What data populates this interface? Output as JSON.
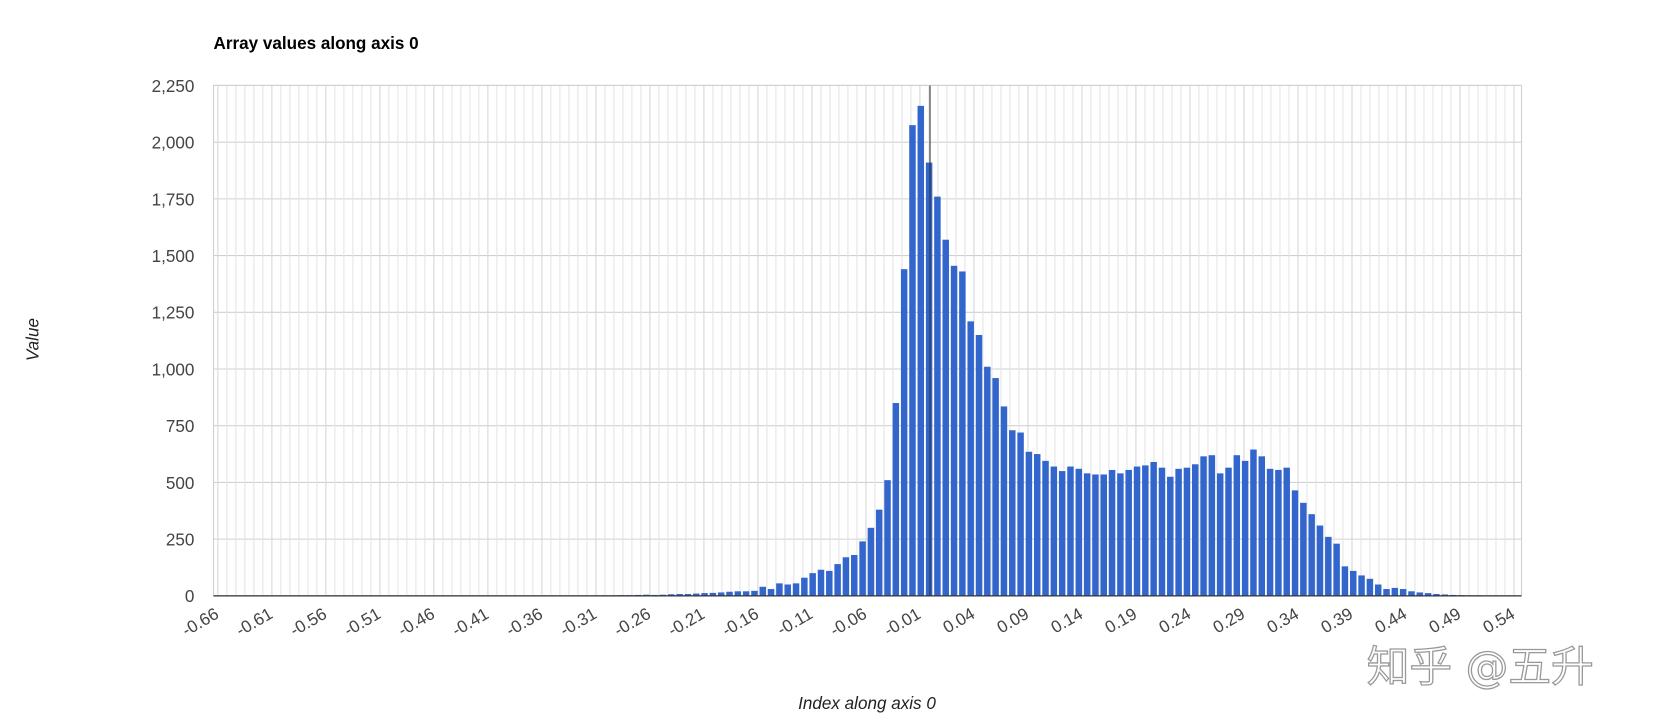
{
  "chart_data": {
    "type": "bar",
    "title": "Array values along axis 0",
    "x_label": "Index along axis 0",
    "y_label": "Value",
    "watermark": "知乎 @五升",
    "color": "#3366cc",
    "grid": true,
    "xlim": [
      -0.664,
      0.547
    ],
    "ylim": [
      0,
      2250
    ],
    "xticks": [
      -0.66,
      -0.61,
      -0.56,
      -0.51,
      -0.46,
      -0.41,
      -0.36,
      -0.31,
      -0.26,
      -0.21,
      -0.16,
      -0.11,
      -0.06,
      -0.01,
      0.04,
      0.09,
      0.14,
      0.19,
      0.24,
      0.29,
      0.34,
      0.39,
      0.44,
      0.49,
      0.54
    ],
    "yticks": [
      0,
      250,
      500,
      750,
      {
        "value": 1000,
        "label": "1,000"
      },
      {
        "value": 1250,
        "label": "1,250"
      },
      {
        "value": 1500,
        "label": "1,500"
      },
      {
        "value": 1750,
        "label": "1,750"
      },
      {
        "value": 2000,
        "label": "2,000"
      },
      {
        "value": 2250,
        "label": "2,250"
      }
    ],
    "x": [
      -0.656,
      -0.6483,
      -0.6406,
      -0.6329,
      -0.6252,
      -0.6175,
      -0.6098,
      -0.6021,
      -0.5944,
      -0.5867,
      -0.579,
      -0.5713,
      -0.5636,
      -0.5559,
      -0.5482,
      -0.5405,
      -0.5328,
      -0.5251,
      -0.5174,
      -0.5097,
      -0.502,
      -0.4943,
      -0.4866,
      -0.4789,
      -0.4712,
      -0.4635,
      -0.4558,
      -0.4481,
      -0.4404,
      -0.4327,
      -0.425,
      -0.4173,
      -0.4096,
      -0.4019,
      -0.3942,
      -0.3865,
      -0.3788,
      -0.3711,
      -0.3634,
      -0.3557,
      -0.348,
      -0.3403,
      -0.3326,
      -0.3249,
      -0.3172,
      -0.3095,
      -0.3018,
      -0.2941,
      -0.2864,
      -0.2787,
      -0.271,
      -0.2633,
      -0.2556,
      -0.2479,
      -0.2402,
      -0.2325,
      -0.2248,
      -0.2171,
      -0.2094,
      -0.2017,
      -0.194,
      -0.1863,
      -0.1786,
      -0.1709,
      -0.1632,
      -0.1555,
      -0.1478,
      -0.1401,
      -0.1324,
      -0.1247,
      -0.117,
      -0.1093,
      -0.1016,
      -0.0939,
      -0.0862,
      -0.0785,
      -0.0708,
      -0.0631,
      -0.0554,
      -0.0477,
      -0.04,
      -0.0323,
      -0.0246,
      -0.0169,
      -0.0092,
      -0.0015,
      0.0062,
      0.0139,
      0.0216,
      0.0293,
      0.037,
      0.0447,
      0.0524,
      0.0601,
      0.0678,
      0.0755,
      0.0832,
      0.0909,
      0.0986,
      0.1063,
      0.114,
      0.1217,
      0.1294,
      0.1371,
      0.1448,
      0.1525,
      0.1602,
      0.1679,
      0.1756,
      0.1833,
      0.191,
      0.1987,
      0.2064,
      0.2141,
      0.2218,
      0.2295,
      0.2372,
      0.2449,
      0.2526,
      0.2603,
      0.268,
      0.2757,
      0.2834,
      0.2911,
      0.2988,
      0.3065,
      0.3142,
      0.3219,
      0.3296,
      0.3373,
      0.345,
      0.3527,
      0.3604,
      0.3681,
      0.3758,
      0.3835,
      0.3912,
      0.3989,
      0.4066,
      0.4143,
      0.422,
      0.4297,
      0.4374,
      0.4451,
      0.4528,
      0.4605,
      0.4682,
      0.4759,
      0.4836,
      0.4913,
      0.499,
      0.5067,
      0.5144,
      0.5221,
      0.5298,
      0.5375
    ],
    "values": [
      0,
      0,
      0,
      0,
      0,
      0,
      0,
      0,
      0,
      0,
      0,
      0,
      0,
      0,
      0,
      0,
      0,
      0,
      0,
      0,
      1,
      1,
      1,
      1,
      1,
      1,
      1,
      1,
      1,
      1,
      1,
      1,
      1,
      1,
      1,
      1,
      1,
      1,
      1,
      1,
      1,
      1,
      1,
      1,
      1,
      2,
      2,
      2,
      3,
      3,
      4,
      5,
      4,
      5,
      7,
      8,
      8,
      10,
      12,
      13,
      15,
      18,
      20,
      20,
      22,
      40,
      30,
      55,
      50,
      55,
      80,
      100,
      115,
      110,
      140,
      170,
      180,
      240,
      300,
      380,
      510,
      850,
      1440,
      2075,
      2160,
      1910,
      1760,
      1570,
      1455,
      1430,
      1210,
      1150,
      1010,
      960,
      835,
      730,
      720,
      635,
      625,
      595,
      570,
      550,
      570,
      560,
      540,
      535,
      535,
      555,
      540,
      555,
      570,
      575,
      590,
      565,
      525,
      560,
      565,
      580,
      615,
      620,
      540,
      565,
      620,
      595,
      645,
      615,
      560,
      555,
      565,
      465,
      410,
      360,
      310,
      260,
      230,
      130,
      110,
      90,
      75,
      50,
      30,
      35,
      30,
      20,
      15,
      12,
      8,
      6,
      4,
      3,
      2,
      2,
      1,
      1,
      1,
      1
    ]
  }
}
